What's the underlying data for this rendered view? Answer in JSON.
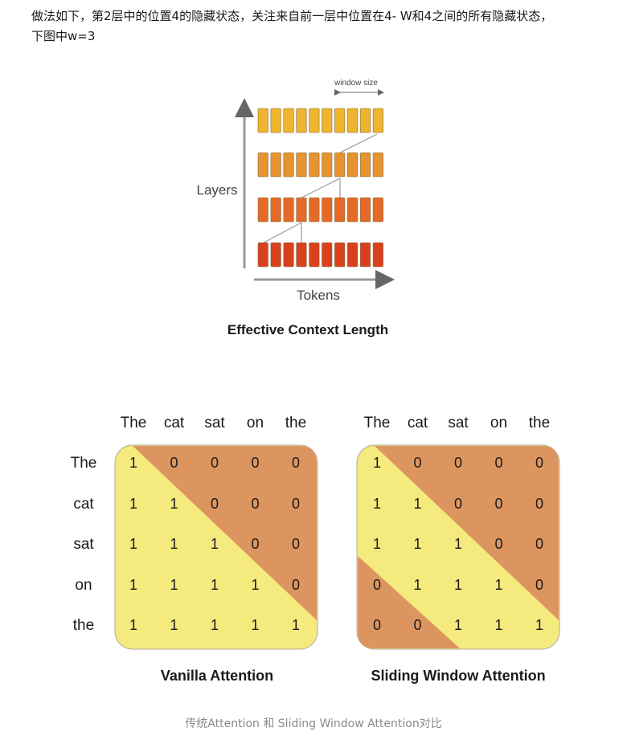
{
  "intro": {
    "line1": "做法如下，第2层中的位置4的隐藏状态，关注来自前一层中位置在4- W和4之间的所有隐藏状态，",
    "line2": "下图中w=3"
  },
  "figure_top": {
    "window_size_label": "window size",
    "y_axis_label": "Layers",
    "x_axis_label": "Tokens",
    "title": "Effective Context Length",
    "layer_colors": [
      "#efb52f",
      "#e69432",
      "#e56a28",
      "#d9401d"
    ],
    "layer_count": 4,
    "tokens_per_layer": 10
  },
  "matrices": [
    {
      "title": "Vanilla Attention",
      "col_tokens": [
        "The",
        "cat",
        "sat",
        "on",
        "the"
      ],
      "row_tokens": [
        "The",
        "cat",
        "sat",
        "on",
        "the"
      ],
      "values": [
        [
          1,
          0,
          0,
          0,
          0
        ],
        [
          1,
          1,
          0,
          0,
          0
        ],
        [
          1,
          1,
          1,
          0,
          0
        ],
        [
          1,
          1,
          1,
          1,
          0
        ],
        [
          1,
          1,
          1,
          1,
          1
        ]
      ]
    },
    {
      "title": "Sliding Window Attention",
      "col_tokens": [
        "The",
        "cat",
        "sat",
        "on",
        "the"
      ],
      "values": [
        [
          1,
          0,
          0,
          0,
          0
        ],
        [
          1,
          1,
          0,
          0,
          0
        ],
        [
          1,
          1,
          1,
          0,
          0
        ],
        [
          0,
          1,
          1,
          1,
          0
        ],
        [
          0,
          0,
          1,
          1,
          1
        ]
      ]
    }
  ],
  "colors": {
    "attend": "#f5ea7d",
    "mask": "#dd9560",
    "border": "#b0aca0"
  },
  "caption": "传统Attention 和 Sliding Window Attention对比"
}
